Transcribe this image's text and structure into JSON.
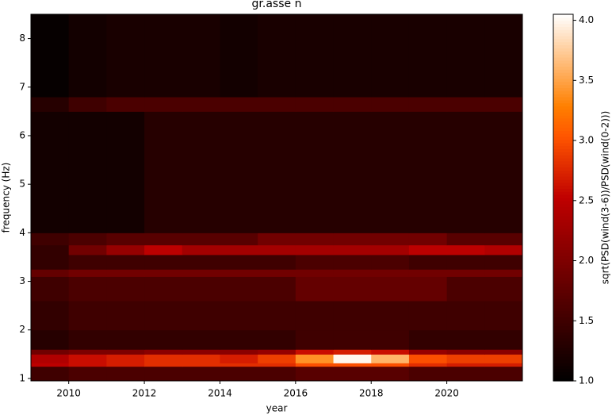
{
  "chart_data": {
    "type": "heatmap",
    "title": "gr.asse n",
    "x_label": "year",
    "y_label": "frequency (Hz)",
    "colorbar_label": "sqrt(PSD(wind(3-6))/PSD(wind(0-2)))",
    "colormap": "gist_heat",
    "xlim": [
      2009,
      2022
    ],
    "ylim": [
      0.95,
      8.5
    ],
    "clim": [
      1.0,
      4.05
    ],
    "xticks": [
      2010,
      2012,
      2014,
      2016,
      2018,
      2020
    ],
    "yticks": [
      1,
      2,
      3,
      4,
      5,
      6,
      7,
      8
    ],
    "cticks": [
      {
        "value": 1,
        "label": "1.0"
      },
      {
        "value": 1.5,
        "label": "1.5"
      },
      {
        "value": 2,
        "label": "2.0"
      },
      {
        "value": 2.5,
        "label": "2.5"
      },
      {
        "value": 3,
        "label": "3.0"
      },
      {
        "value": 3.5,
        "label": "3.5"
      },
      {
        "value": 4,
        "label": "4.0"
      }
    ],
    "xbins": [
      2009,
      2010,
      2011,
      2012,
      2013,
      2014,
      2015,
      2016,
      2017,
      2018,
      2019,
      2020,
      2021,
      2022
    ],
    "ybins": [
      0.95,
      1.25,
      1.32,
      1.5,
      1.6,
      2.0,
      2.6,
      3.1,
      3.25,
      3.55,
      3.75,
      4.0,
      6.5,
      6.8,
      8.5
    ],
    "z": [
      [
        1.5,
        1.6,
        1.6,
        1.6,
        1.6,
        1.6,
        1.6,
        1.7,
        1.7,
        1.7,
        1.6,
        1.6,
        1.6
      ],
      [
        2.5,
        2.6,
        2.7,
        2.8,
        2.8,
        2.8,
        2.8,
        3.0,
        3.0,
        3.0,
        2.8,
        2.7,
        2.7
      ],
      [
        2.4,
        2.6,
        2.7,
        2.8,
        2.8,
        2.7,
        2.9,
        3.4,
        4.0,
        3.6,
        3.0,
        2.9,
        2.9
      ],
      [
        1.9,
        2.0,
        2.0,
        2.1,
        2.1,
        2.1,
        2.2,
        2.6,
        2.7,
        2.6,
        2.2,
        2.1,
        2.1
      ],
      [
        1.3,
        1.4,
        1.4,
        1.4,
        1.4,
        1.4,
        1.4,
        1.5,
        1.5,
        1.5,
        1.4,
        1.4,
        1.4
      ],
      [
        1.4,
        1.5,
        1.5,
        1.5,
        1.5,
        1.5,
        1.5,
        1.5,
        1.5,
        1.5,
        1.5,
        1.5,
        1.5
      ],
      [
        1.5,
        1.6,
        1.6,
        1.6,
        1.6,
        1.6,
        1.6,
        1.8,
        1.8,
        1.8,
        1.8,
        1.6,
        1.6
      ],
      [
        1.8,
        1.9,
        1.9,
        1.9,
        1.9,
        1.9,
        1.9,
        1.9,
        1.9,
        1.9,
        1.9,
        1.9,
        1.9
      ],
      [
        1.4,
        1.5,
        1.5,
        1.5,
        1.5,
        1.5,
        1.5,
        1.6,
        1.6,
        1.6,
        1.5,
        1.5,
        1.5
      ],
      [
        1.4,
        1.9,
        2.2,
        2.5,
        2.3,
        2.3,
        2.3,
        2.3,
        2.3,
        2.3,
        2.5,
        2.5,
        2.4
      ],
      [
        1.5,
        1.6,
        1.7,
        1.7,
        1.7,
        1.7,
        1.9,
        1.9,
        1.9,
        1.9,
        1.9,
        1.7,
        1.7
      ],
      [
        1.15,
        1.15,
        1.15,
        1.3,
        1.3,
        1.3,
        1.3,
        1.3,
        1.3,
        1.3,
        1.3,
        1.3,
        1.3
      ],
      [
        1.3,
        1.5,
        1.6,
        1.6,
        1.6,
        1.6,
        1.6,
        1.6,
        1.6,
        1.6,
        1.6,
        1.6,
        1.6
      ],
      [
        1.05,
        1.15,
        1.2,
        1.2,
        1.2,
        1.15,
        1.2,
        1.2,
        1.2,
        1.2,
        1.2,
        1.2,
        1.2
      ]
    ]
  }
}
